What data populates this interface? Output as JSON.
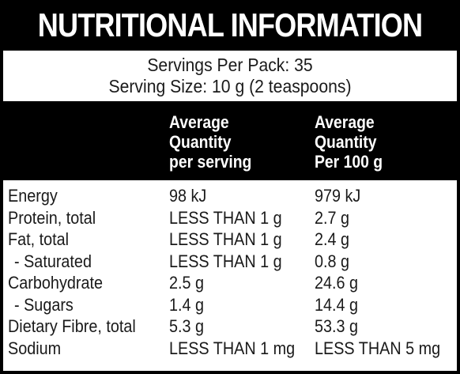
{
  "title": "NUTRITIONAL INFORMATION",
  "servings": {
    "per_pack": "Servings Per Pack: 35",
    "size": "Serving Size: 10 g (2 teaspoons)"
  },
  "header": {
    "col1": [
      "Average",
      "Quantity",
      "per serving"
    ],
    "col2": [
      "Average",
      "Quantity",
      "Per 100 g"
    ]
  },
  "rows": [
    {
      "name": "Energy",
      "per_serving": "98 kJ",
      "per_100g": "979 kJ"
    },
    {
      "name": "Protein, total",
      "per_serving": "LESS THAN 1 g",
      "per_100g": "2.7 g"
    },
    {
      "name": "Fat, total",
      "per_serving": "LESS THAN 1 g",
      "per_100g": "2.4 g"
    },
    {
      "name": "- Saturated",
      "per_serving": "LESS THAN 1 g",
      "per_100g": "0.8 g"
    },
    {
      "name": "Carbohydrate",
      "per_serving": "2.5 g",
      "per_100g": "24.6 g"
    },
    {
      "name": "- Sugars",
      "per_serving": "1.4 g",
      "per_100g": "14.4 g"
    },
    {
      "name": "Dietary Fibre, total",
      "per_serving": "5.3 g",
      "per_100g": "53.3 g"
    },
    {
      "name": "Sodium",
      "per_serving": "LESS THAN 1 mg",
      "per_100g": "LESS THAN 5 mg"
    }
  ]
}
